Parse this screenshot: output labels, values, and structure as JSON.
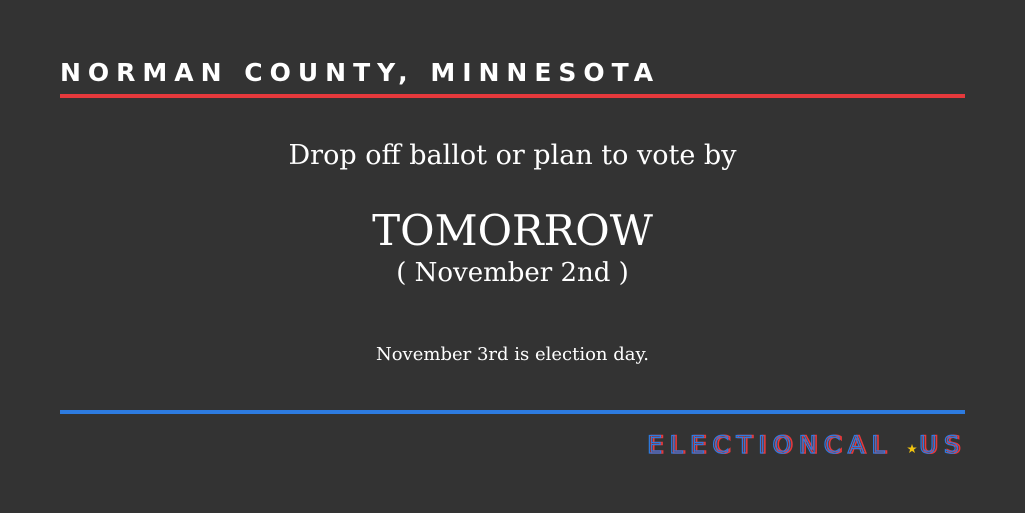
{
  "header": {
    "county": "NORMAN COUNTY, MINNESOTA"
  },
  "main": {
    "intro": "Drop off ballot or plan to vote by",
    "deadline_word": "TOMORROW",
    "deadline_date": "( November 2nd )",
    "note": "November 3rd is election day."
  },
  "footer": {
    "logo_text": "ELECTIONCAL.US"
  },
  "colors": {
    "background": "#333333",
    "accent_red": "#e5393c",
    "accent_blue": "#2d7be0",
    "star_yellow": "#f1c40f"
  }
}
